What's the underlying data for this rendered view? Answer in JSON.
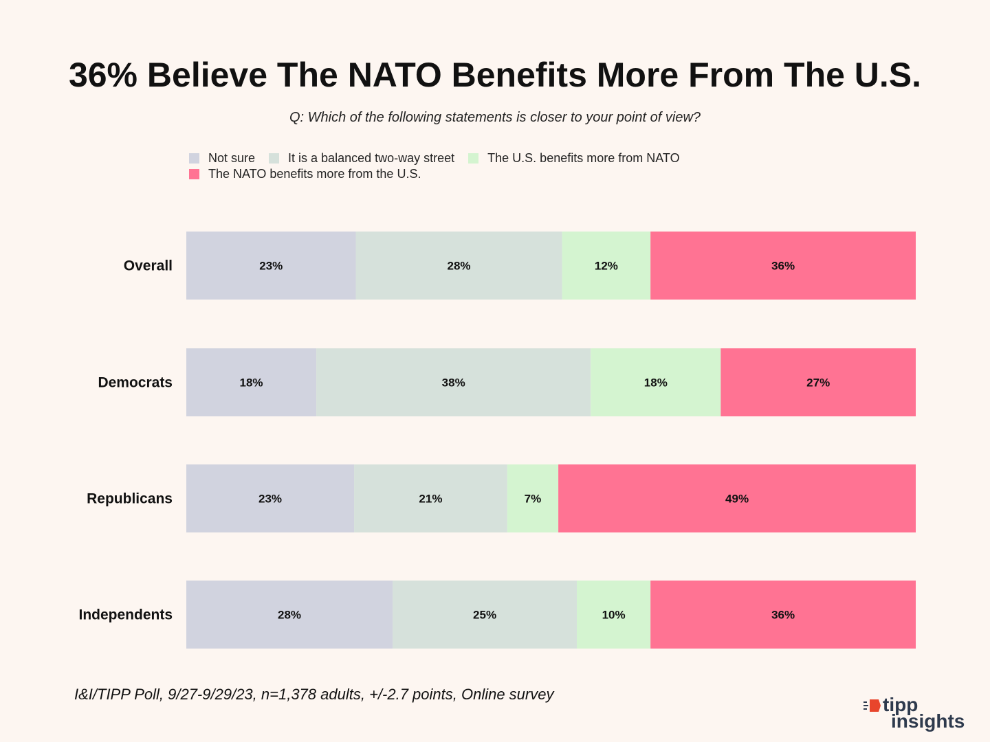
{
  "title": "36% Believe The NATO Benefits More From The U.S.",
  "subtitle": "Q: Which of the following statements is closer to your point of view?",
  "source": "I&I/TIPP Poll, 9/27-9/29/23, n=1,378 adults, +/-2.7 points, Online survey",
  "logo": {
    "line1": "tipp",
    "line2": "insights"
  },
  "colors": {
    "not_sure": "#d1d3df",
    "balanced": "#d6e1db",
    "us_benefits": "#d4f4d0",
    "nato_benefits": "#ff7393",
    "logo_accent": "#e8452c"
  },
  "chart_data": {
    "type": "bar",
    "orientation": "horizontal",
    "stacked": true,
    "title": "36% Believe The NATO Benefits More From The U.S.",
    "xlabel": "",
    "ylabel": "",
    "xlim": [
      0,
      100
    ],
    "grid": false,
    "legend_position": "top",
    "categories": [
      "Overall",
      "Democrats",
      "Republicans",
      "Independents"
    ],
    "series": [
      {
        "name": "Not sure",
        "color": "#d1d3df",
        "values": [
          23,
          18,
          23,
          28
        ]
      },
      {
        "name": "It is a balanced two-way street",
        "color": "#d6e1db",
        "values": [
          28,
          38,
          21,
          25
        ]
      },
      {
        "name": "The U.S. benefits more from NATO",
        "color": "#d4f4d0",
        "values": [
          12,
          18,
          7,
          10
        ]
      },
      {
        "name": "The NATO benefits more from the U.S.",
        "color": "#ff7393",
        "values": [
          36,
          27,
          49,
          36
        ]
      }
    ],
    "value_suffix": "%"
  }
}
